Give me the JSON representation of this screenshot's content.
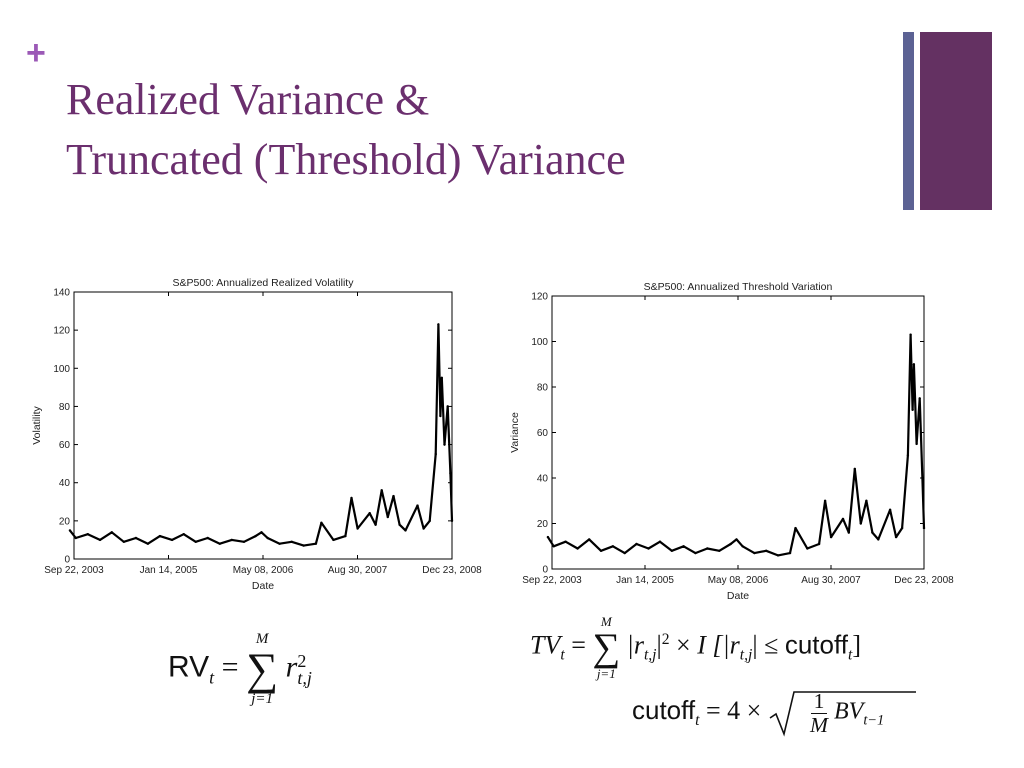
{
  "slide": {
    "bullet": "+",
    "title_line1": "Realized Variance &",
    "title_line2": "Truncated (Threshold) Variance"
  },
  "chart_data": [
    {
      "type": "line",
      "title": "S&P500: Annualized Realized Volatility",
      "xlabel": "Date",
      "ylabel": "Volatility",
      "ylim": [
        0,
        140
      ],
      "yticks": [
        0,
        20,
        40,
        60,
        80,
        100,
        120,
        140
      ],
      "xlim": [
        "2003-09-22",
        "2008-12-23"
      ],
      "xticks": [
        "Sep 22, 2003",
        "Jan 14, 2005",
        "May 08, 2006",
        "Aug 30, 2007",
        "Dec 23, 2008"
      ],
      "series": [
        {
          "x": [
            "2003-09",
            "2003-10",
            "2003-12",
            "2004-02",
            "2004-04",
            "2004-06",
            "2004-08",
            "2004-10",
            "2004-12",
            "2005-02",
            "2005-04",
            "2005-06",
            "2005-08",
            "2005-10",
            "2005-12",
            "2006-02",
            "2006-04",
            "2006-05",
            "2006-06",
            "2006-08",
            "2006-10",
            "2006-12",
            "2007-02",
            "2007-03",
            "2007-05",
            "2007-07",
            "2007-08",
            "2007-09",
            "2007-11",
            "2007-12",
            "2008-01",
            "2008-02",
            "2008-03",
            "2008-04",
            "2008-05",
            "2008-07",
            "2008-08",
            "2008-09",
            "2008-10",
            "2008-10-15",
            "2008-10-25",
            "2008-11",
            "2008-11-15",
            "2008-12",
            "2008-12-15",
            "2008-12-23"
          ],
          "values": [
            15,
            11,
            13,
            10,
            14,
            9,
            11,
            8,
            12,
            10,
            13,
            9,
            11,
            8,
            10,
            9,
            12,
            14,
            11,
            8,
            9,
            7,
            8,
            19,
            10,
            12,
            32,
            16,
            24,
            18,
            36,
            22,
            33,
            18,
            15,
            28,
            16,
            20,
            55,
            123,
            75,
            95,
            60,
            80,
            45,
            20
          ]
        }
      ]
    },
    {
      "type": "line",
      "title": "S&P500: Annualized Threshold Variation",
      "xlabel": "Date",
      "ylabel": "Variance",
      "ylim": [
        0,
        120
      ],
      "yticks": [
        0,
        20,
        40,
        60,
        80,
        100,
        120
      ],
      "xlim": [
        "2003-09-22",
        "2008-12-23"
      ],
      "xticks": [
        "Sep 22, 2003",
        "Jan 14, 2005",
        "May 08, 2006",
        "Aug 30, 2007",
        "Dec 23, 2008"
      ],
      "series": [
        {
          "x": [
            "2003-09",
            "2003-10",
            "2003-12",
            "2004-02",
            "2004-04",
            "2004-06",
            "2004-08",
            "2004-10",
            "2004-12",
            "2005-02",
            "2005-04",
            "2005-06",
            "2005-08",
            "2005-10",
            "2005-12",
            "2006-02",
            "2006-04",
            "2006-05",
            "2006-06",
            "2006-08",
            "2006-10",
            "2006-12",
            "2007-02",
            "2007-03",
            "2007-05",
            "2007-07",
            "2007-08",
            "2007-09",
            "2007-11",
            "2007-12",
            "2008-01",
            "2008-02",
            "2008-03",
            "2008-04",
            "2008-05",
            "2008-07",
            "2008-08",
            "2008-09",
            "2008-10",
            "2008-10-15",
            "2008-10-25",
            "2008-11",
            "2008-11-15",
            "2008-12",
            "2008-12-15",
            "2008-12-23"
          ],
          "values": [
            14,
            10,
            12,
            9,
            13,
            8,
            10,
            7,
            11,
            9,
            12,
            8,
            10,
            7,
            9,
            8,
            11,
            13,
            10,
            7,
            8,
            6,
            7,
            18,
            9,
            11,
            30,
            14,
            22,
            16,
            44,
            20,
            30,
            16,
            13,
            26,
            14,
            18,
            50,
            103,
            70,
            90,
            55,
            75,
            40,
            18
          ]
        }
      ]
    }
  ],
  "formulas": {
    "rv_label": "RV",
    "rv_sub": "t",
    "equals": "=",
    "sum_upper": "M",
    "sum_lower": "j=1",
    "r": "r",
    "r_sup": "2",
    "r_sub": "t,j",
    "tv_label": "TV",
    "tv_sub": "t",
    "tv_lower": "j=1",
    "abs_r": "|r",
    "abs_sub": "t,j",
    "abs_close": "|",
    "power2": "2",
    "times": "×",
    "indicator": "I",
    "ind_open": "[|r",
    "le": "≤",
    "cutoff": "cutoff",
    "cutoff_sub": "t",
    "ind_close": "]",
    "cutoff_eq_lhs": "cutoff",
    "four": "4",
    "frac_num": "1",
    "frac_den": "M",
    "bv": "BV",
    "bv_sub": "t−1"
  }
}
